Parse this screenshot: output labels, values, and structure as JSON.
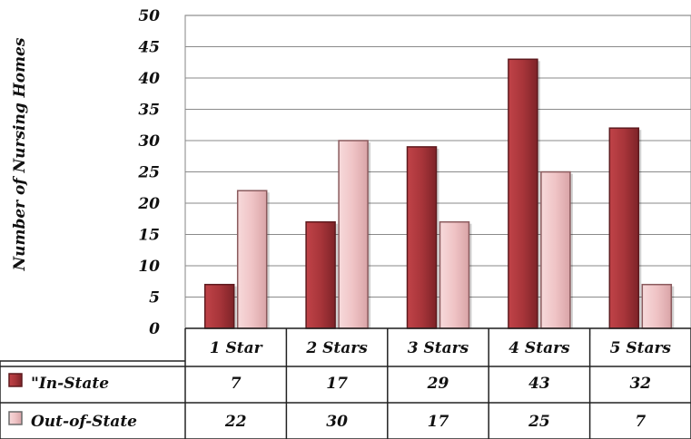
{
  "chart_data": {
    "type": "bar",
    "ylabel": "Number of Nursing Homes",
    "ylim": [
      0,
      50
    ],
    "yticks": [
      0,
      5,
      10,
      15,
      20,
      25,
      30,
      35,
      40,
      45,
      50
    ],
    "categories": [
      "1 Star",
      "2 Stars",
      "3 Stars",
      "4 Stars",
      "5 Stars"
    ],
    "series": [
      {
        "name": "\"In-State",
        "values": [
          7,
          17,
          29,
          43,
          32
        ],
        "color": "#a8353a"
      },
      {
        "name": "Out-of-State",
        "values": [
          22,
          30,
          17,
          25,
          7
        ],
        "color": "#efc3c5"
      }
    ],
    "grid": true,
    "legend": "data-table"
  }
}
